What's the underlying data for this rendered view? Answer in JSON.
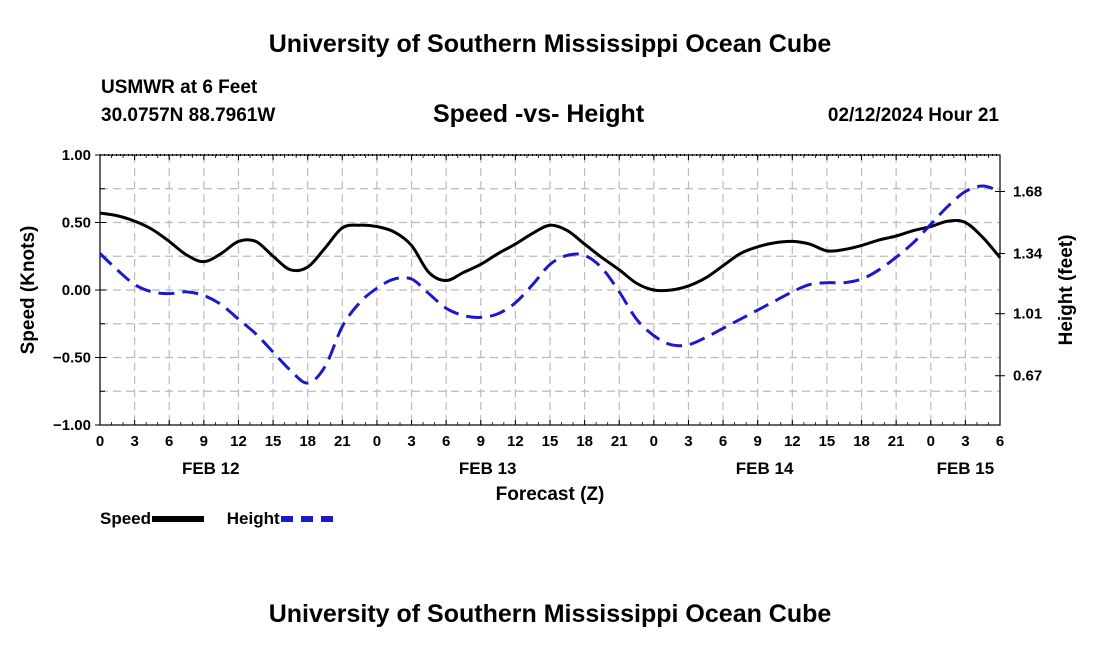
{
  "page": {
    "title_top": "University of Southern Mississippi Ocean Cube",
    "title_bottom": "University of Southern Mississippi Ocean Cube",
    "station": "USMWR at 6 Feet",
    "coords": "30.0757N  88.7961W",
    "subtitle": "Speed -vs- Height",
    "datetime": "02/12/2024 Hour 21"
  },
  "legend": {
    "speed_label": "Speed",
    "height_label": "Height"
  },
  "colors": {
    "speed": "#000000",
    "height": "#1a1acc",
    "grid": "#bbbbbb"
  },
  "chart_data": {
    "type": "line",
    "title": "Speed -vs- Height",
    "xlabel": "Forecast (Z)",
    "ylabel_left": "Speed (Knots)",
    "ylabel_right": "Height (feet)",
    "x_unit": "hours since 2024-02-12 00Z",
    "xlim": [
      0,
      78
    ],
    "ylim_left": [
      -1.0,
      1.0
    ],
    "ylim_right": [
      0.4,
      1.88
    ],
    "left_ticks": [
      {
        "value": 1.0,
        "label": "1.00"
      },
      {
        "value": 0.5,
        "label": "0.50"
      },
      {
        "value": 0.0,
        "label": "0.00"
      },
      {
        "value": -0.5,
        "label": "−0.50"
      },
      {
        "value": -1.0,
        "label": "−1.00"
      }
    ],
    "right_ticks": [
      {
        "value": 1.68,
        "label": "1.68"
      },
      {
        "value": 1.34,
        "label": "1.34"
      },
      {
        "value": 1.01,
        "label": "1.01"
      },
      {
        "value": 0.67,
        "label": "0.67"
      }
    ],
    "x_ticks": [
      {
        "value": 0,
        "label": "0"
      },
      {
        "value": 3,
        "label": "3"
      },
      {
        "value": 6,
        "label": "6"
      },
      {
        "value": 9,
        "label": "9"
      },
      {
        "value": 12,
        "label": "12"
      },
      {
        "value": 15,
        "label": "15"
      },
      {
        "value": 18,
        "label": "18"
      },
      {
        "value": 21,
        "label": "21"
      },
      {
        "value": 24,
        "label": "0"
      },
      {
        "value": 27,
        "label": "3"
      },
      {
        "value": 30,
        "label": "6"
      },
      {
        "value": 33,
        "label": "9"
      },
      {
        "value": 36,
        "label": "12"
      },
      {
        "value": 39,
        "label": "15"
      },
      {
        "value": 42,
        "label": "18"
      },
      {
        "value": 45,
        "label": "21"
      },
      {
        "value": 48,
        "label": "0"
      },
      {
        "value": 51,
        "label": "3"
      },
      {
        "value": 54,
        "label": "6"
      },
      {
        "value": 57,
        "label": "9"
      },
      {
        "value": 60,
        "label": "12"
      },
      {
        "value": 63,
        "label": "15"
      },
      {
        "value": 66,
        "label": "18"
      },
      {
        "value": 69,
        "label": "21"
      },
      {
        "value": 72,
        "label": "0"
      },
      {
        "value": 75,
        "label": "3"
      },
      {
        "value": 78,
        "label": "6"
      }
    ],
    "date_labels": [
      {
        "value": 9.6,
        "label": "FEB 12"
      },
      {
        "value": 33.6,
        "label": "FEB 13"
      },
      {
        "value": 57.6,
        "label": "FEB 14"
      },
      {
        "value": 75.0,
        "label": "FEB 15"
      }
    ],
    "series": [
      {
        "name": "Speed",
        "axis": "left",
        "style": "solid",
        "x": [
          0,
          1.5,
          3,
          4.5,
          6,
          7.5,
          9,
          10.5,
          12,
          13.5,
          15,
          16.5,
          18,
          19.5,
          21,
          22.5,
          24,
          25.5,
          27,
          28.5,
          30,
          31.5,
          33,
          34.5,
          36,
          37.5,
          39,
          40.5,
          42,
          43.5,
          45,
          46.5,
          48,
          49.5,
          51,
          52.5,
          54,
          55.5,
          57,
          58.5,
          60,
          61.5,
          63,
          64.5,
          66,
          67.5,
          69,
          70.5,
          72,
          73.5,
          75,
          76.5,
          78
        ],
        "values": [
          0.57,
          0.55,
          0.51,
          0.45,
          0.36,
          0.26,
          0.21,
          0.27,
          0.36,
          0.36,
          0.25,
          0.15,
          0.17,
          0.31,
          0.46,
          0.48,
          0.47,
          0.43,
          0.33,
          0.13,
          0.07,
          0.13,
          0.19,
          0.27,
          0.34,
          0.42,
          0.48,
          0.44,
          0.34,
          0.24,
          0.15,
          0.05,
          0.0,
          0.0,
          0.03,
          0.09,
          0.18,
          0.27,
          0.32,
          0.35,
          0.36,
          0.34,
          0.29,
          0.3,
          0.33,
          0.37,
          0.4,
          0.44,
          0.47,
          0.51,
          0.5,
          0.39,
          0.24
        ]
      },
      {
        "name": "Height",
        "axis": "right",
        "style": "dashed",
        "x": [
          0,
          1.5,
          3,
          4.5,
          6,
          7.5,
          9,
          10.5,
          12,
          13.5,
          15,
          16.5,
          18,
          19.5,
          21,
          22.5,
          24,
          25.5,
          27,
          28.5,
          30,
          31.5,
          33,
          34.5,
          36,
          37.5,
          39,
          40.5,
          42,
          43.5,
          45,
          46.5,
          48,
          49.5,
          51,
          52.5,
          54,
          55.5,
          57,
          58.5,
          60,
          61.5,
          63,
          64.5,
          66,
          67.5,
          69,
          70.5,
          72,
          73.5,
          75,
          76.5,
          78
        ],
        "values": [
          1.34,
          1.25,
          1.17,
          1.13,
          1.12,
          1.13,
          1.11,
          1.06,
          0.98,
          0.9,
          0.8,
          0.7,
          0.63,
          0.72,
          0.94,
          1.07,
          1.15,
          1.2,
          1.2,
          1.12,
          1.04,
          1.0,
          0.99,
          1.01,
          1.07,
          1.17,
          1.28,
          1.33,
          1.33,
          1.26,
          1.13,
          0.98,
          0.89,
          0.84,
          0.84,
          0.88,
          0.93,
          0.98,
          1.03,
          1.08,
          1.13,
          1.17,
          1.18,
          1.18,
          1.2,
          1.25,
          1.32,
          1.4,
          1.5,
          1.6,
          1.68,
          1.71,
          1.68
        ]
      }
    ]
  }
}
